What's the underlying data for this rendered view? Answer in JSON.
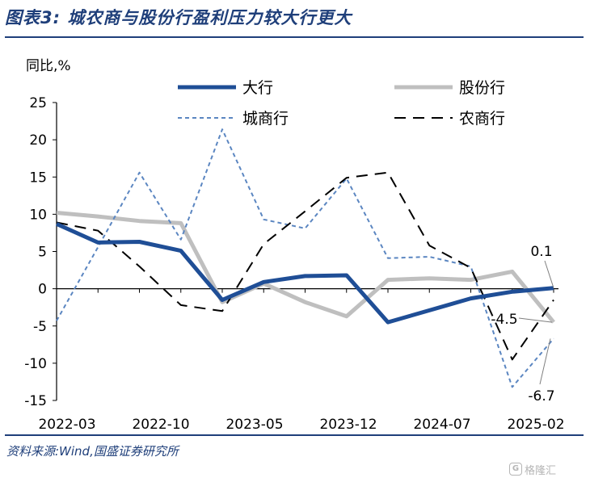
{
  "figure": {
    "title": "图表3:  城农商与股份行盈利压力较大行更大",
    "source": "资料来源:Wind,国盛证券研究所",
    "watermark": "格隆汇",
    "watermark_icon": "g-logo-icon"
  },
  "chart_data": {
    "type": "line",
    "title": "",
    "xlabel": "",
    "ylabel": "同比,%",
    "ylim": [
      -15,
      25
    ],
    "yticks": [
      -15,
      -10,
      -5,
      0,
      5,
      10,
      15,
      20,
      25
    ],
    "x": [
      "2022-03",
      "2022-06",
      "2022-09",
      "2022-12",
      "2023-03",
      "2023-06",
      "2023-09",
      "2023-12",
      "2024-03",
      "2024-06",
      "2024-09",
      "2024-12",
      "2025-03"
    ],
    "xtick_labels": [
      "2022-03",
      "2022-10",
      "2023-05",
      "2023-12",
      "2024-07",
      "2025-02"
    ],
    "grid": false,
    "legend_position": "top",
    "series": [
      {
        "name": "大行",
        "color": "#1f4e96",
        "style": "solid",
        "width": 5,
        "values": [
          8.7,
          6.2,
          6.3,
          5.1,
          -1.5,
          0.9,
          1.7,
          1.8,
          -4.5,
          -2.9,
          -1.3,
          -0.4,
          0.1
        ]
      },
      {
        "name": "股份行",
        "color": "#bfbfbf",
        "style": "solid",
        "width": 5,
        "values": [
          10.2,
          9.7,
          9.1,
          8.8,
          -1.8,
          0.7,
          -1.8,
          -3.7,
          1.2,
          1.4,
          1.2,
          2.3,
          -4.5
        ]
      },
      {
        "name": "城商行",
        "color": "#5b86c1",
        "style": "dashed",
        "width": 2,
        "values": [
          -4.3,
          5.6,
          15.6,
          6.6,
          21.4,
          9.3,
          8.1,
          14.8,
          4.1,
          4.3,
          3.0,
          -13.2,
          -6.7
        ]
      },
      {
        "name": "农商行",
        "color": "#000000",
        "style": "longdash",
        "width": 2,
        "values": [
          8.9,
          7.8,
          3.0,
          -2.2,
          -3.0,
          6.0,
          10.4,
          14.9,
          15.6,
          5.8,
          2.8,
          -9.5,
          -1.5
        ]
      }
    ],
    "annotations": [
      "0.1",
      "-4.5",
      "-6.7"
    ]
  }
}
